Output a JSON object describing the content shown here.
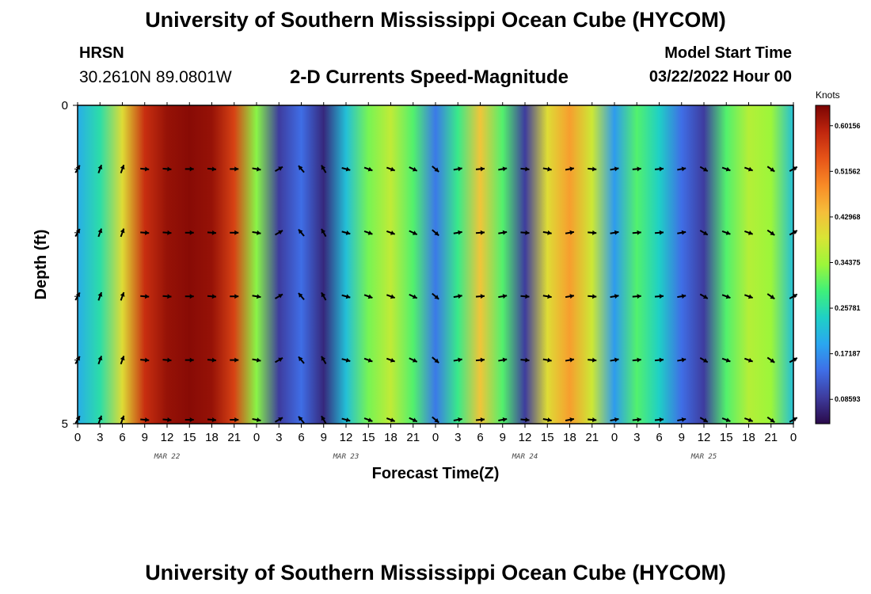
{
  "header": {
    "title": "University of Southern Mississippi Ocean Cube (HYCOM)",
    "station": "HRSN",
    "coords": "30.2610N  89.0801W",
    "subtitle": "2-D Currents Speed-Magnitude",
    "model_start_label": "Model Start Time",
    "model_start_value": "03/22/2022 Hour 00"
  },
  "footer": {
    "title": "University of Southern Mississippi Ocean Cube (HYCOM)"
  },
  "colorbar": {
    "unit": "Knots",
    "ticks": [
      "0.60156",
      "0.51562",
      "0.42968",
      "0.34375",
      "0.25781",
      "0.17187",
      "0.08593"
    ],
    "stops": [
      "#2a0a4a",
      "#3e3c9e",
      "#3f6ee6",
      "#2aa6f0",
      "#1fd0c6",
      "#3ff07a",
      "#9cf63a",
      "#d8e435",
      "#f6bd3a",
      "#f88a26",
      "#e65418",
      "#c0260e",
      "#7a0403"
    ]
  },
  "chart_data": {
    "type": "heatmap",
    "title": "2-D Currents Speed-Magnitude",
    "xlabel": "Forecast Time(Z)",
    "ylabel": "Depth (ft)",
    "ylim": [
      5,
      0
    ],
    "speed_range": [
      0.04,
      0.64
    ],
    "y_ticks": [
      "0",
      "5"
    ],
    "x_tick_labels": [
      "0",
      "3",
      "6",
      "9",
      "12",
      "15",
      "18",
      "21",
      "0",
      "3",
      "6",
      "9",
      "12",
      "15",
      "18",
      "21",
      "0",
      "3",
      "6",
      "9",
      "12",
      "15",
      "18",
      "21",
      "0",
      "3",
      "6",
      "9",
      "12",
      "15",
      "18",
      "21",
      "0"
    ],
    "day_labels": [
      "MAR 22",
      "MAR 23",
      "MAR 24",
      "MAR 25"
    ],
    "time_hours": [
      0,
      3,
      6,
      9,
      12,
      15,
      18,
      21,
      24,
      27,
      30,
      33,
      36,
      39,
      42,
      45,
      48,
      51,
      54,
      57,
      60,
      63,
      66,
      69,
      72,
      75,
      78,
      81,
      84,
      87,
      90,
      93,
      96
    ],
    "speed_knots": [
      0.2,
      0.26,
      0.4,
      0.58,
      0.62,
      0.63,
      0.62,
      0.56,
      0.33,
      0.09,
      0.14,
      0.07,
      0.22,
      0.32,
      0.37,
      0.3,
      0.15,
      0.28,
      0.43,
      0.3,
      0.09,
      0.4,
      0.47,
      0.38,
      0.18,
      0.3,
      0.24,
      0.14,
      0.09,
      0.3,
      0.36,
      0.34,
      0.22
    ],
    "arrow_depths_ft": [
      1,
      2,
      3,
      4,
      5
    ],
    "arrow_direction_deg": [
      -60,
      -70,
      -70,
      5,
      5,
      0,
      5,
      0,
      10,
      -30,
      -130,
      -120,
      15,
      20,
      20,
      25,
      40,
      -10,
      -5,
      -10,
      5,
      10,
      -10,
      5,
      -10,
      -5,
      -5,
      -10,
      30,
      20,
      20,
      35,
      -30
    ]
  }
}
